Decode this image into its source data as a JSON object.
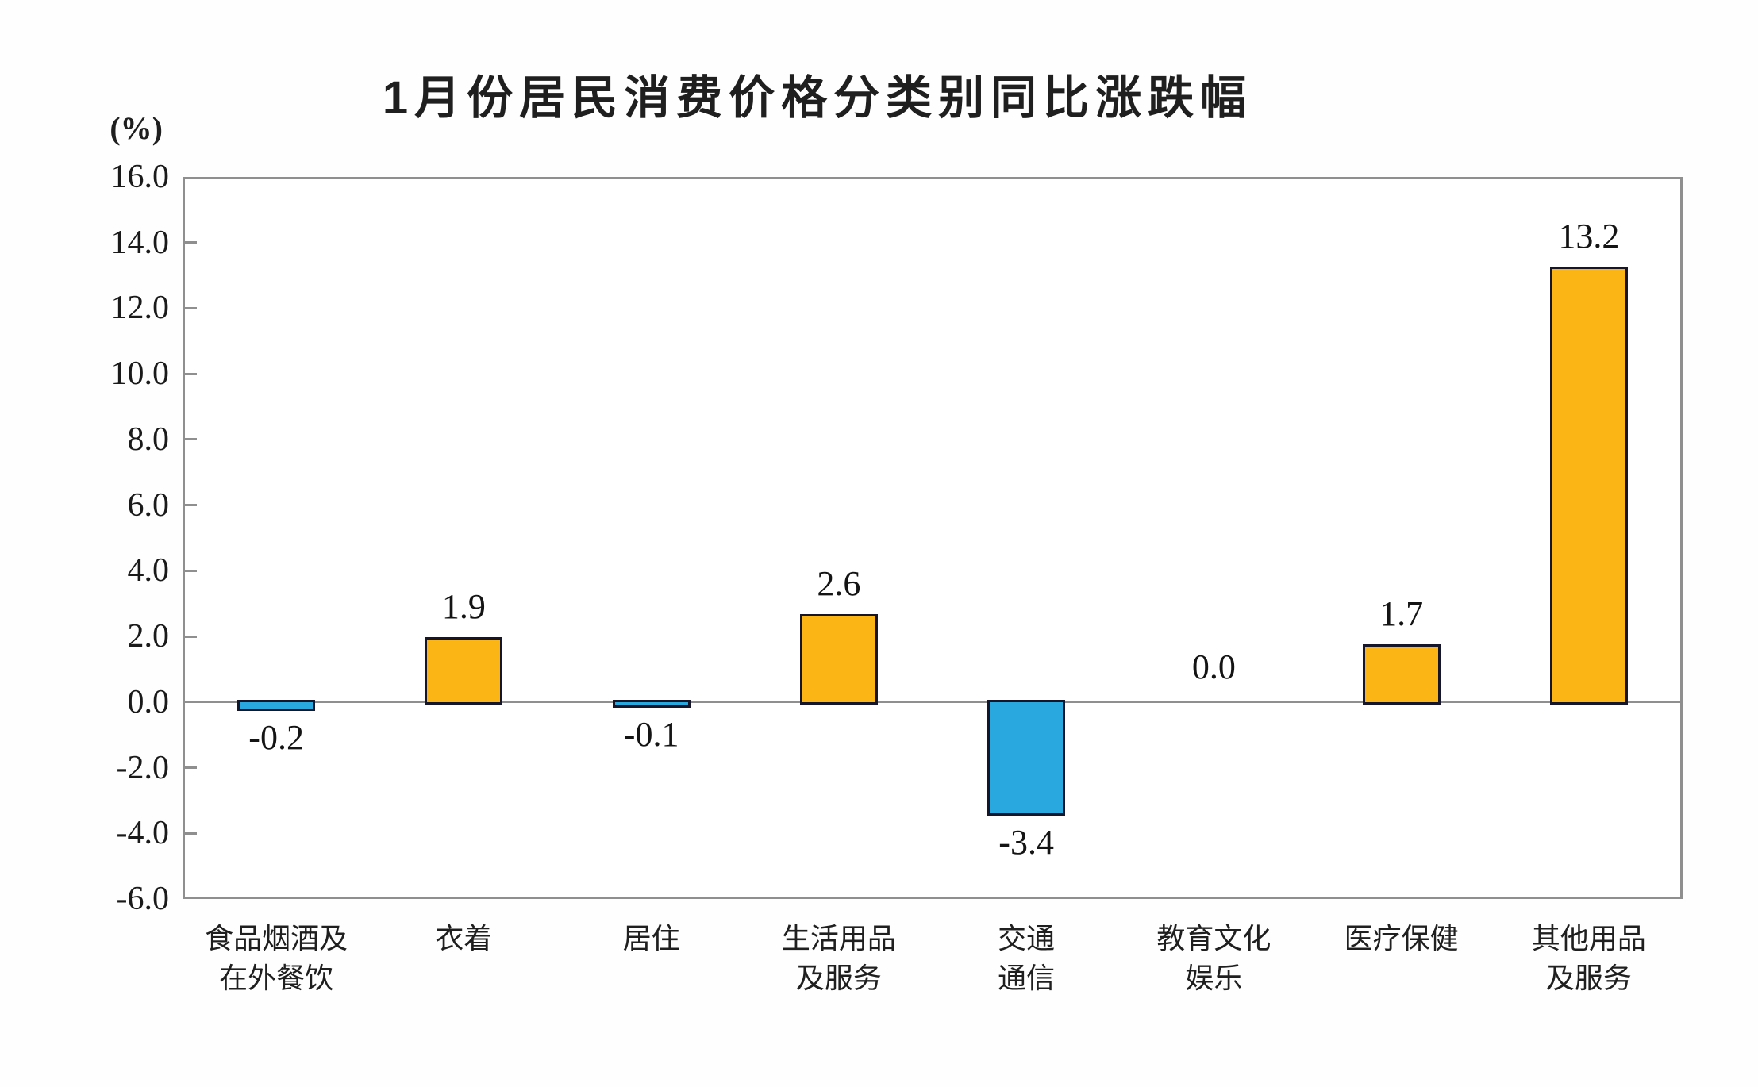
{
  "title": "1月份居民消费价格分类别同比涨跌幅",
  "y_axis": {
    "unit_label": "(%)",
    "tick_labels": [
      "16.0",
      "14.0",
      "12.0",
      "10.0",
      "8.0",
      "6.0",
      "4.0",
      "2.0",
      "0.0",
      "-2.0",
      "-4.0",
      "-6.0"
    ]
  },
  "chart_data": {
    "type": "bar",
    "title": "1月份居民消费价格分类别同比涨跌幅",
    "xlabel": "",
    "ylabel": "(%)",
    "ylim": [
      -6.0,
      16.0
    ],
    "tick_step": 2.0,
    "grid": false,
    "legend": "none",
    "categories": [
      "食品烟酒及在外餐饮",
      "衣着",
      "居住",
      "生活用品及服务",
      "交通通信",
      "教育文化娱乐",
      "医疗保健",
      "其他用品及服务"
    ],
    "category_lines": [
      [
        "食品烟酒及",
        "在外餐饮"
      ],
      [
        "衣着"
      ],
      [
        "居住"
      ],
      [
        "生活用品",
        "及服务"
      ],
      [
        "交通",
        "通信"
      ],
      [
        "教育文化",
        "娱乐"
      ],
      [
        "医疗保健"
      ],
      [
        "其他用品",
        "及服务"
      ]
    ],
    "values": [
      -0.2,
      1.9,
      -0.1,
      2.6,
      -3.4,
      0.0,
      1.7,
      13.2
    ],
    "value_labels": [
      "-0.2",
      "1.9",
      "-0.1",
      "2.6",
      "-3.4",
      "0.0",
      "1.7",
      "13.2"
    ],
    "bar_colors": [
      "#29A8E0",
      "#FBB616",
      "#29A8E0",
      "#FBB616",
      "#29A8E0",
      "#FBB616",
      "#FBB616",
      "#FBB616"
    ]
  },
  "colors": {
    "bar_positive": "#FBB616",
    "bar_negative": "#29A8E0",
    "bar_border": "#16162a",
    "axis_frame": "#8f8f8f",
    "text": "#1a1a1a",
    "background": "#ffffff"
  }
}
